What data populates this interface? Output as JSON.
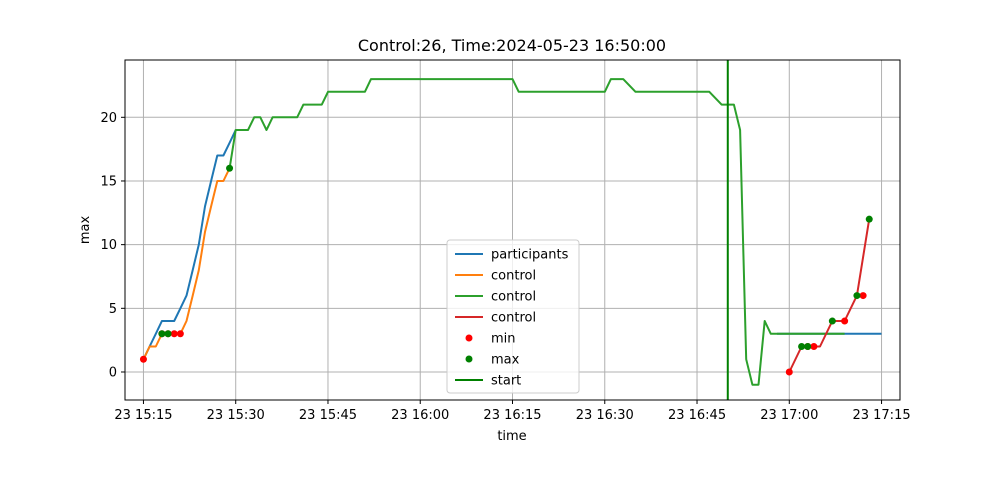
{
  "chart_data": {
    "type": "line",
    "title": "Control:26, Time:2024-05-23 16:50:00",
    "xlabel": "time",
    "ylabel": "max",
    "x_ticks": [
      "23 15:15",
      "23 15:30",
      "23 15:45",
      "23 16:00",
      "23 16:15",
      "23 16:30",
      "23 16:45",
      "23 17:00",
      "23 17:15"
    ],
    "x_tick_values": [
      0,
      15,
      30,
      45,
      60,
      75,
      90,
      105,
      120
    ],
    "xlim": [
      -3,
      123
    ],
    "y_ticks": [
      "0",
      "5",
      "10",
      "15",
      "20"
    ],
    "y_tick_values": [
      0,
      5,
      10,
      15,
      20
    ],
    "ylim": [
      -2.2,
      24.5
    ],
    "grid": true,
    "legend_position": "bottom-center",
    "colors": {
      "participants": "#1f77b4",
      "control_orange": "#ff7f0e",
      "control_green": "#2ca02c",
      "control_red": "#d62728",
      "min": "#ff0000",
      "max": "#008000",
      "start": "#008000"
    },
    "series": [
      {
        "name": "participants",
        "color": "#1f77b4",
        "x": [
          0,
          1,
          2,
          3,
          4,
          5,
          6,
          7,
          8,
          9,
          10,
          11,
          12,
          13,
          14,
          15
        ],
        "y": [
          1,
          2,
          3,
          4,
          4,
          4,
          5,
          6,
          8,
          10,
          13,
          15,
          17,
          17,
          18,
          19
        ]
      },
      {
        "name": "control",
        "color": "#ff7f0e",
        "x": [
          0,
          1,
          2,
          3,
          4,
          5,
          6,
          7,
          8,
          9,
          10,
          11,
          12,
          13,
          14
        ],
        "y": [
          1,
          2,
          2,
          3,
          3,
          3,
          3,
          4,
          6,
          8,
          11,
          13,
          15,
          15,
          16
        ]
      },
      {
        "name": "control",
        "color": "#2ca02c",
        "x": [
          14,
          15,
          16,
          17,
          18,
          19,
          20,
          21,
          22,
          23,
          24,
          25,
          26,
          27,
          28,
          29,
          30,
          31,
          32,
          33,
          34,
          35,
          36,
          37,
          38,
          40,
          45,
          50,
          55,
          60,
          61,
          63,
          65,
          70,
          75,
          76,
          77,
          78,
          80,
          85,
          90,
          92,
          94,
          95,
          96,
          97,
          98,
          99,
          100,
          101,
          102,
          103,
          104,
          105,
          106,
          107,
          108,
          109,
          110,
          111,
          112,
          113,
          114
        ],
        "y": [
          16,
          19,
          19,
          19,
          20,
          20,
          19,
          20,
          20,
          20,
          20,
          20,
          21,
          21,
          21,
          21,
          22,
          22,
          22,
          22,
          22,
          22,
          22,
          23,
          23,
          23,
          23,
          23,
          23,
          23,
          22,
          22,
          22,
          22,
          22,
          23,
          23,
          23,
          22,
          22,
          22,
          22,
          21,
          21,
          21,
          19,
          1,
          -1,
          -1,
          4,
          3,
          3,
          3,
          3,
          3,
          3,
          3,
          3,
          3,
          3,
          3,
          3,
          3
        ]
      },
      {
        "name": "control",
        "color": "#d62728",
        "x": [
          105,
          107,
          108,
          109,
          110,
          112,
          114,
          116,
          118
        ],
        "y": [
          0,
          2,
          2,
          2,
          2,
          4,
          4,
          6,
          12
        ]
      }
    ],
    "participants_tail": {
      "color": "#1f77b4",
      "x": [
        103,
        105,
        110,
        115,
        120
      ],
      "y": [
        3,
        3,
        3,
        3,
        3
      ]
    },
    "min_points": {
      "name": "min",
      "color": "#ff0000",
      "x": [
        0,
        3,
        4,
        5,
        6,
        105,
        108,
        109,
        114,
        117
      ],
      "y": [
        1,
        3,
        3,
        3,
        3,
        0,
        2,
        2,
        4,
        6
      ]
    },
    "max_points": {
      "name": "max",
      "color": "#008000",
      "x": [
        3,
        4,
        14,
        107,
        108,
        112,
        116,
        118
      ],
      "y": [
        3,
        3,
        16,
        2,
        2,
        4,
        6,
        12
      ]
    },
    "start_line": {
      "name": "start",
      "color": "#008000",
      "x": 95
    },
    "legend": [
      "participants",
      "control",
      "control",
      "control",
      "min",
      "max",
      "start"
    ]
  }
}
